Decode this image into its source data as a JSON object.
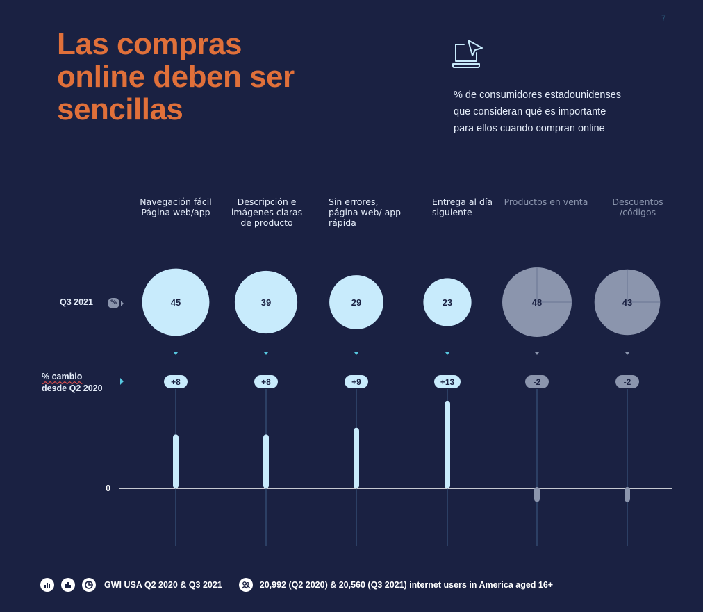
{
  "page_number": "7",
  "title_lines": [
    "Las compras",
    "online deben ser",
    "sencillas"
  ],
  "subtitle_lines": [
    "% de consumidores estadounidenses",
    "que consideran qué es importante",
    "para ellos cuando compran online"
  ],
  "row_labels": {
    "q3": "Q3 2021",
    "pct_badge": "%",
    "change_line1": "% cambio",
    "change_line2": "desde Q2 2020",
    "zero": "0"
  },
  "headers": [
    [
      "Navegación fácil",
      "Página web/app"
    ],
    [
      "Descripción e",
      "imágenes claras",
      "de producto"
    ],
    [
      "Sin errores,",
      "página web/ app",
      "rápida"
    ],
    [
      "Entrega al día",
      "siguiente"
    ],
    [
      "Productos en venta"
    ],
    [
      "Descuentos",
      "/códigos"
    ]
  ],
  "footer": {
    "source": "GWI USA Q2 2020 & Q3 2021",
    "sample": "20,992 (Q2 2020) & 20,560 (Q3 2021) internet users in America aged 16+"
  },
  "colors": {
    "background": "#1a2142",
    "title": "#e0703a",
    "highlight": "#c8ebfc",
    "muted": "#8b95ad",
    "accent": "#57c8e0",
    "rule": "#3f5d86"
  },
  "chart_data": {
    "type": "bubble+bar",
    "categories": [
      "Navegación fácil Página web/app",
      "Descripción e imágenes claras de producto",
      "Sin errores, página web/ app rápida",
      "Entrega al día siguiente",
      "Productos en venta",
      "Descuentos /códigos"
    ],
    "series": [
      {
        "name": "Q3 2021",
        "unit": "%",
        "values": [
          45,
          39,
          29,
          23,
          48,
          43
        ],
        "labels": [
          "45",
          "39",
          "29",
          "23",
          "48",
          "43"
        ]
      },
      {
        "name": "% cambio desde Q2 2020",
        "values": [
          8,
          8,
          9,
          13,
          -2,
          -2
        ],
        "labels": [
          "+8",
          "+8",
          "+9",
          "+13",
          "-2",
          "-2"
        ]
      }
    ],
    "highlighted": [
      true,
      true,
      true,
      true,
      false,
      false
    ],
    "change_axis_zero": 0
  }
}
